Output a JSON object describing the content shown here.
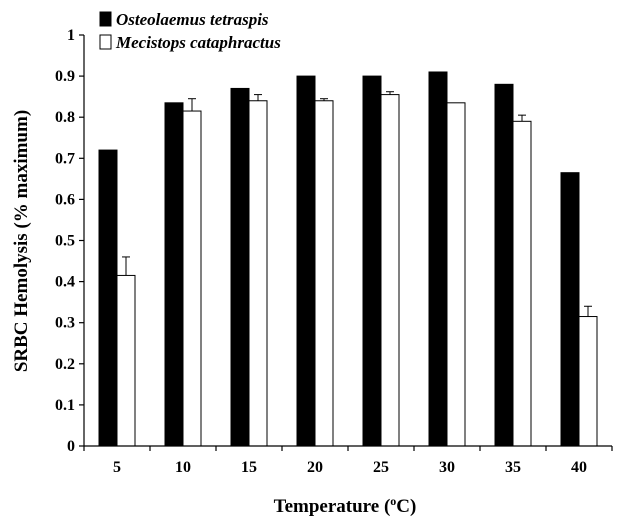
{
  "chart_data": {
    "type": "bar",
    "xlabel": "Temperature (",
    "xlabel_sup": "o",
    "xlabel_end": "C)",
    "ylabel": "SRBC Hemolysis (% maximum)",
    "categories": [
      "5",
      "10",
      "15",
      "20",
      "25",
      "30",
      "35",
      "40"
    ],
    "ylim": [
      0,
      1
    ],
    "yticks": [
      "0",
      "0.1",
      "0.2",
      "0.3",
      "0.4",
      "0.5",
      "0.6",
      "0.7",
      "0.8",
      "0.9",
      "1"
    ],
    "grid": false,
    "legend_position": "top-left",
    "series": [
      {
        "name": "Osteolaemus tetraspis",
        "color": "#000000",
        "values": [
          0.72,
          0.835,
          0.87,
          0.9,
          0.9,
          0.91,
          0.88,
          0.665
        ],
        "errors": [
          0.0,
          0.0,
          0.0,
          0.0,
          0.0,
          0.0,
          0.0,
          0.0
        ]
      },
      {
        "name": "Mecistops cataphractus",
        "color": "#ffffff",
        "values": [
          0.415,
          0.815,
          0.84,
          0.84,
          0.855,
          0.835,
          0.79,
          0.315
        ],
        "errors": [
          0.045,
          0.03,
          0.015,
          0.005,
          0.007,
          0.0,
          0.015,
          0.025
        ]
      }
    ]
  }
}
